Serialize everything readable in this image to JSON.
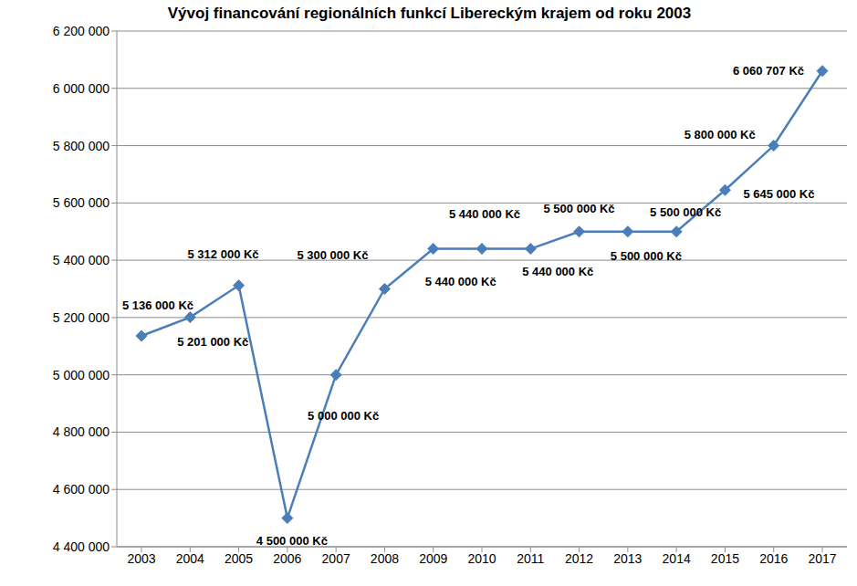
{
  "chart_data": {
    "type": "line",
    "title": "Vývoj financování regionálních funkcí Libereckým krajem od roku 2003",
    "categories": [
      "2003",
      "2004",
      "2005",
      "2006",
      "2007",
      "2008",
      "2009",
      "2010",
      "2011",
      "2012",
      "2013",
      "2014",
      "2015",
      "2016",
      "2017"
    ],
    "values": [
      5136000,
      5201000,
      5312000,
      4500000,
      5000000,
      5300000,
      5440000,
      5440000,
      5440000,
      5500000,
      5500000,
      5500000,
      5645000,
      5800000,
      6060707
    ],
    "value_labels": [
      "5 136 000 Kč",
      "5 201 000 Kč",
      "5 312 000 Kč",
      "4 500 000 Kč",
      "5 000 000 Kč",
      "5 300 000 Kč",
      "5 440 000 Kč",
      "5 440 000 Kč",
      "5 440 000 Kč",
      "5 500 000 Kč",
      "5 500 000 Kč",
      "5 500 000 Kč",
      "5 645 000 Kč",
      "5 800 000 Kč",
      "6 060 707 Kč"
    ],
    "color": "#4a7ebb",
    "marker": "diamond",
    "data_labels": true,
    "grid": true,
    "ylim": [
      4400000,
      6200000
    ],
    "yticks": [
      {
        "value": 4400000,
        "label": "4 400 000"
      },
      {
        "value": 4600000,
        "label": "4 600 000"
      },
      {
        "value": 4800000,
        "label": "4 800 000"
      },
      {
        "value": 5000000,
        "label": "5 000 000"
      },
      {
        "value": 5200000,
        "label": "5 200 000"
      },
      {
        "value": 5400000,
        "label": "5 400 000"
      },
      {
        "value": 5600000,
        "label": "5 600 000"
      },
      {
        "value": 5800000,
        "label": "5 800 000"
      },
      {
        "value": 6000000,
        "label": "6 000 000"
      },
      {
        "value": 6200000,
        "label": "6 200 000"
      }
    ]
  }
}
